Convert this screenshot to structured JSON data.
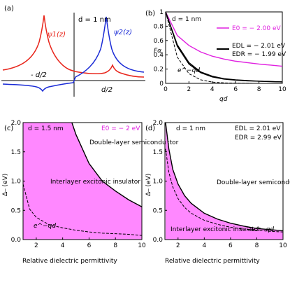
{
  "panel_labels": [
    "(a)",
    "(b)",
    "(c)",
    "(d)"
  ],
  "panel_a": {
    "d_label": "d = 1 nm",
    "psi1_label": "ψ1(z)",
    "psi2_label": "ψ2(z)",
    "left_tick": "- d/2",
    "right_tick": "d/2",
    "colors": {
      "psi1": "#e8261c",
      "psi2": "#1a2bd6"
    }
  },
  "chart_data": [
    {
      "panel": "b",
      "type": "line",
      "xlabel": "qd",
      "ylabel": "Fα",
      "xlim": [
        0,
        10
      ],
      "ylim": [
        0,
        1
      ],
      "xticks": [
        0,
        2,
        4,
        6,
        8,
        10
      ],
      "yticks": [
        0,
        0.2,
        0.4,
        0.6,
        0.8,
        1
      ],
      "annotation": "d = 1 nm",
      "series": [
        {
          "name": "E0 = − 2.00 eV",
          "color": "#e020e0",
          "x": [
            0,
            1,
            2,
            3,
            4,
            5,
            6,
            7,
            8,
            9,
            10
          ],
          "y": [
            1.0,
            0.67,
            0.53,
            0.44,
            0.38,
            0.34,
            0.31,
            0.29,
            0.27,
            0.255,
            0.24
          ]
        },
        {
          "name": "EDL = − 2.01 eV",
          "color": "#000000",
          "x": [
            0,
            1,
            2,
            3,
            4,
            5,
            6,
            7,
            8,
            9,
            10
          ],
          "y": [
            1.0,
            0.52,
            0.27,
            0.15,
            0.09,
            0.06,
            0.045,
            0.035,
            0.03,
            0.025,
            0.02
          ]
        },
        {
          "name": "EDR = − 1.99 eV",
          "color": "#000000",
          "x": [
            0,
            1,
            2,
            3,
            4,
            5,
            6,
            7,
            8,
            9,
            10
          ],
          "y": [
            1.0,
            0.54,
            0.29,
            0.16,
            0.1,
            0.065,
            0.05,
            0.04,
            0.03,
            0.025,
            0.02
          ]
        },
        {
          "name": "e^−qd",
          "color": "#000000",
          "dashed": true,
          "x": [
            0,
            1,
            2,
            3,
            4,
            5,
            6,
            7,
            8,
            9,
            10
          ],
          "y": [
            1.0,
            0.368,
            0.135,
            0.05,
            0.018,
            0.0067,
            0.0025,
            0.0009,
            0.0003,
            0.0001,
            0.0
          ]
        }
      ]
    },
    {
      "panel": "c",
      "type": "area",
      "xlabel": "Relative dielectric permittivity",
      "ylabel": "Δ⎯ (eV)",
      "xlim": [
        1,
        10
      ],
      "ylim": [
        0,
        2
      ],
      "xticks": [
        2,
        4,
        6,
        8,
        10
      ],
      "yticks": [
        0,
        0.5,
        1.0,
        1.5,
        2.0
      ],
      "annotation": "d = 1.5 nm",
      "legend_text": "E0 = − 2 eV",
      "region_upper": "Double-layer semiconductor",
      "region_lower": "Interlayer excitonic insulator",
      "curve_label": "e^−qd",
      "series": [
        {
          "name": "boundary",
          "color": "#000000",
          "x": [
            4.7,
            5,
            6,
            7,
            8,
            9,
            10
          ],
          "y": [
            2.0,
            1.8,
            1.3,
            1.0,
            0.83,
            0.68,
            0.56
          ]
        },
        {
          "name": "e^−qd",
          "color": "#000000",
          "dashed": true,
          "x": [
            1,
            1.5,
            2,
            3,
            4,
            5,
            6,
            7,
            8,
            9,
            10
          ],
          "y": [
            0.95,
            0.52,
            0.38,
            0.25,
            0.2,
            0.16,
            0.13,
            0.11,
            0.1,
            0.09,
            0.07
          ]
        }
      ]
    },
    {
      "panel": "d",
      "type": "area",
      "xlabel": "Relative dielectric permittivity",
      "ylabel": "Δ⎯ (eV)",
      "xlim": [
        1,
        10
      ],
      "ylim": [
        0,
        2
      ],
      "xticks": [
        2,
        4,
        6,
        8,
        10
      ],
      "yticks": [
        0,
        0.5,
        1.0,
        1.5,
        2.0
      ],
      "annotation": "d = 1 nm",
      "legend_text": [
        "EDL = 2.01 eV",
        "EDR = 2.99 eV"
      ],
      "region_upper": "Double-layer semiconductor",
      "region_lower": "Interlayer excitonic insulator",
      "curve_label": "e^−qd",
      "series": [
        {
          "name": "boundary",
          "color": "#000000",
          "x": [
            1.05,
            1.3,
            1.6,
            2,
            2.5,
            3,
            4,
            5,
            6,
            7,
            8,
            9,
            10
          ],
          "y": [
            2.0,
            1.55,
            1.2,
            0.95,
            0.75,
            0.62,
            0.45,
            0.35,
            0.28,
            0.23,
            0.19,
            0.17,
            0.15
          ]
        },
        {
          "name": "e^−qd",
          "color": "#000000",
          "dashed": true,
          "x": [
            1.05,
            1.3,
            1.6,
            2,
            2.5,
            3,
            4,
            5,
            6,
            7,
            8,
            9,
            10
          ],
          "y": [
            1.55,
            1.15,
            0.9,
            0.7,
            0.55,
            0.45,
            0.33,
            0.26,
            0.21,
            0.18,
            0.16,
            0.14,
            0.13
          ]
        }
      ]
    }
  ]
}
